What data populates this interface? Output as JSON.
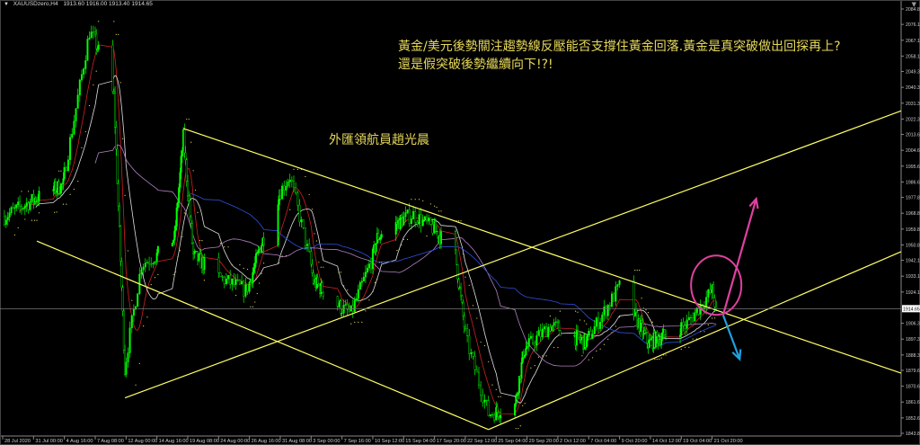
{
  "header": {
    "symbol": "XAUUSDzero,H4",
    "ohlc": "1913.60 1916.00 1913.40 1914.65",
    "menu_icon": "triangle-down-icon",
    "corner_icon": "triangle-down-icon"
  },
  "annotations": {
    "headline_line1": "黃金/美元後勢關注趨勢線反壓能否支撐住黃金回落.黃金是真突破做出回探再上?",
    "headline_line2": "還是假突破後勢繼續向下!?!",
    "author": "外匯領航員趙光晨"
  },
  "colors": {
    "background": "#000000",
    "candle": "#00ff00",
    "trendline": "#ffff66",
    "circle": "#e040a0",
    "arrow_up": "#e040a0",
    "arrow_down": "#20a0e0",
    "text": "#e6d85a",
    "ma_fast": "#d02020",
    "ma_mid": "#e0e0e0",
    "ma_slow": "#b080c0",
    "ma_long": "#3050e0",
    "sar": "#e6d85a"
  },
  "chart_data": {
    "type": "candlestick",
    "symbol": "XAUUSDzero",
    "timeframe": "H4",
    "current_price": 1914.65,
    "ylim": [
      1843.85,
      2084.85
    ],
    "grid": false,
    "price_ticks": [
      "2084.85",
      "2076.10",
      "2067.10",
      "2058.10",
      "2049.35",
      "2040.35",
      "2031.35",
      "2022.35",
      "2013.60",
      "2004.60",
      "1995.60",
      "1986.60",
      "1977.85",
      "1968.85",
      "1959.85",
      "1950.85",
      "1942.10",
      "1933.10",
      "1924.10",
      "1906.35",
      "1897.35",
      "1888.35",
      "1879.60",
      "1870.60",
      "1861.60",
      "1852.60",
      "1843.85"
    ],
    "current_price_label": "1914.65",
    "time_ticks": [
      "28 Jul 2020",
      "31 Jul 00:00",
      "4 Aug 16:00",
      "7 Aug 08:00",
      "12 Aug 00:00",
      "14 Aug 16:00",
      "19 Aug 08:00",
      "24 Aug 00:00",
      "26 Aug 16:00",
      "31 Aug 08:00",
      "3 Sep 00:00",
      "7 Sep 16:00",
      "10 Sep 12:00",
      "15 Sep 04:00",
      "17 Sep 20:00",
      "22 Sep 12:00",
      "25 Sep 04:00",
      "29 Sep 20:00",
      "2 Oct 12:00",
      "7 Oct 04:00",
      "9 Oct 20:00",
      "14 Oct 12:00",
      "19 Oct 04:00",
      "21 Oct 20:00"
    ],
    "price_path": [
      {
        "t": "28 Jul 04:00",
        "p": 1967
      },
      {
        "t": "31 Jul 04:00",
        "p": 1977
      },
      {
        "t": "4 Aug 12:00",
        "p": 1985
      },
      {
        "t": "6 Aug 20:00",
        "p": 2072
      },
      {
        "t": "10 Aug 04:00",
        "p": 2035
      },
      {
        "t": "11 Aug 20:00",
        "p": 1880
      },
      {
        "t": "13 Aug 08:00",
        "p": 1940
      },
      {
        "t": "17 Aug 08:00",
        "p": 1955
      },
      {
        "t": "18 Aug 16:00",
        "p": 2012
      },
      {
        "t": "20 Aug 04:00",
        "p": 1945
      },
      {
        "t": "26 Aug 08:00",
        "p": 1925
      },
      {
        "t": "28 Aug 08:00",
        "p": 1950
      },
      {
        "t": "1 Sep 04:00",
        "p": 1990
      },
      {
        "t": "3 Sep 08:00",
        "p": 1930
      },
      {
        "t": "8 Sep 12:00",
        "p": 1912
      },
      {
        "t": "11 Sep 04:00",
        "p": 1955
      },
      {
        "t": "16 Sep 00:00",
        "p": 1968
      },
      {
        "t": "21 Sep 00:00",
        "p": 1945
      },
      {
        "t": "22 Sep 16:00",
        "p": 1895
      },
      {
        "t": "24 Sep 12:00",
        "p": 1855
      },
      {
        "t": "28 Sep 00:00",
        "p": 1860
      },
      {
        "t": "29 Sep 08:00",
        "p": 1890
      },
      {
        "t": "1 Oct 20:00",
        "p": 1905
      },
      {
        "t": "6 Oct 20:00",
        "p": 1895
      },
      {
        "t": "9 Oct 22:00",
        "p": 1928
      },
      {
        "t": "14 Oct 04:00",
        "p": 1895
      },
      {
        "t": "19 Oct 12:00",
        "p": 1905
      },
      {
        "t": "21 Oct 20:00",
        "p": 1925
      },
      {
        "t": "22 Oct 08:00",
        "p": 1914.65
      }
    ],
    "trendlines": [
      {
        "start": {
          "t": "31 Jul 12:00",
          "p": 1953
        },
        "end": {
          "t": "24 Sep 12:00",
          "p": 1846
        }
      },
      {
        "start": {
          "t": "18 Aug 16:00",
          "p": 2017
        },
        "end": {
          "t": "14 Nov 04:00",
          "p": 1878
        }
      },
      {
        "start": {
          "t": "11 Aug 20:00",
          "p": 1864
        },
        "end": {
          "t": "14 Nov 04:00",
          "p": 2027
        }
      },
      {
        "start": {
          "t": "24 Sep 12:00",
          "p": 1846
        },
        "end": {
          "t": "14 Nov 04:00",
          "p": 1947
        }
      }
    ],
    "circle": {
      "t": "22 Oct 08:00",
      "p": 1928
    },
    "arrows": [
      {
        "direction": "up",
        "start": {
          "t": "23 Oct 04:00",
          "p": 1911
        },
        "end": {
          "t": "27 Oct 04:00",
          "p": 1977
        }
      },
      {
        "direction": "down",
        "start": {
          "t": "23 Oct 04:00",
          "p": 1911
        },
        "end": {
          "t": "25 Oct 04:00",
          "p": 1886
        }
      }
    ],
    "moving_averages": [
      10,
      20,
      50,
      100
    ]
  }
}
